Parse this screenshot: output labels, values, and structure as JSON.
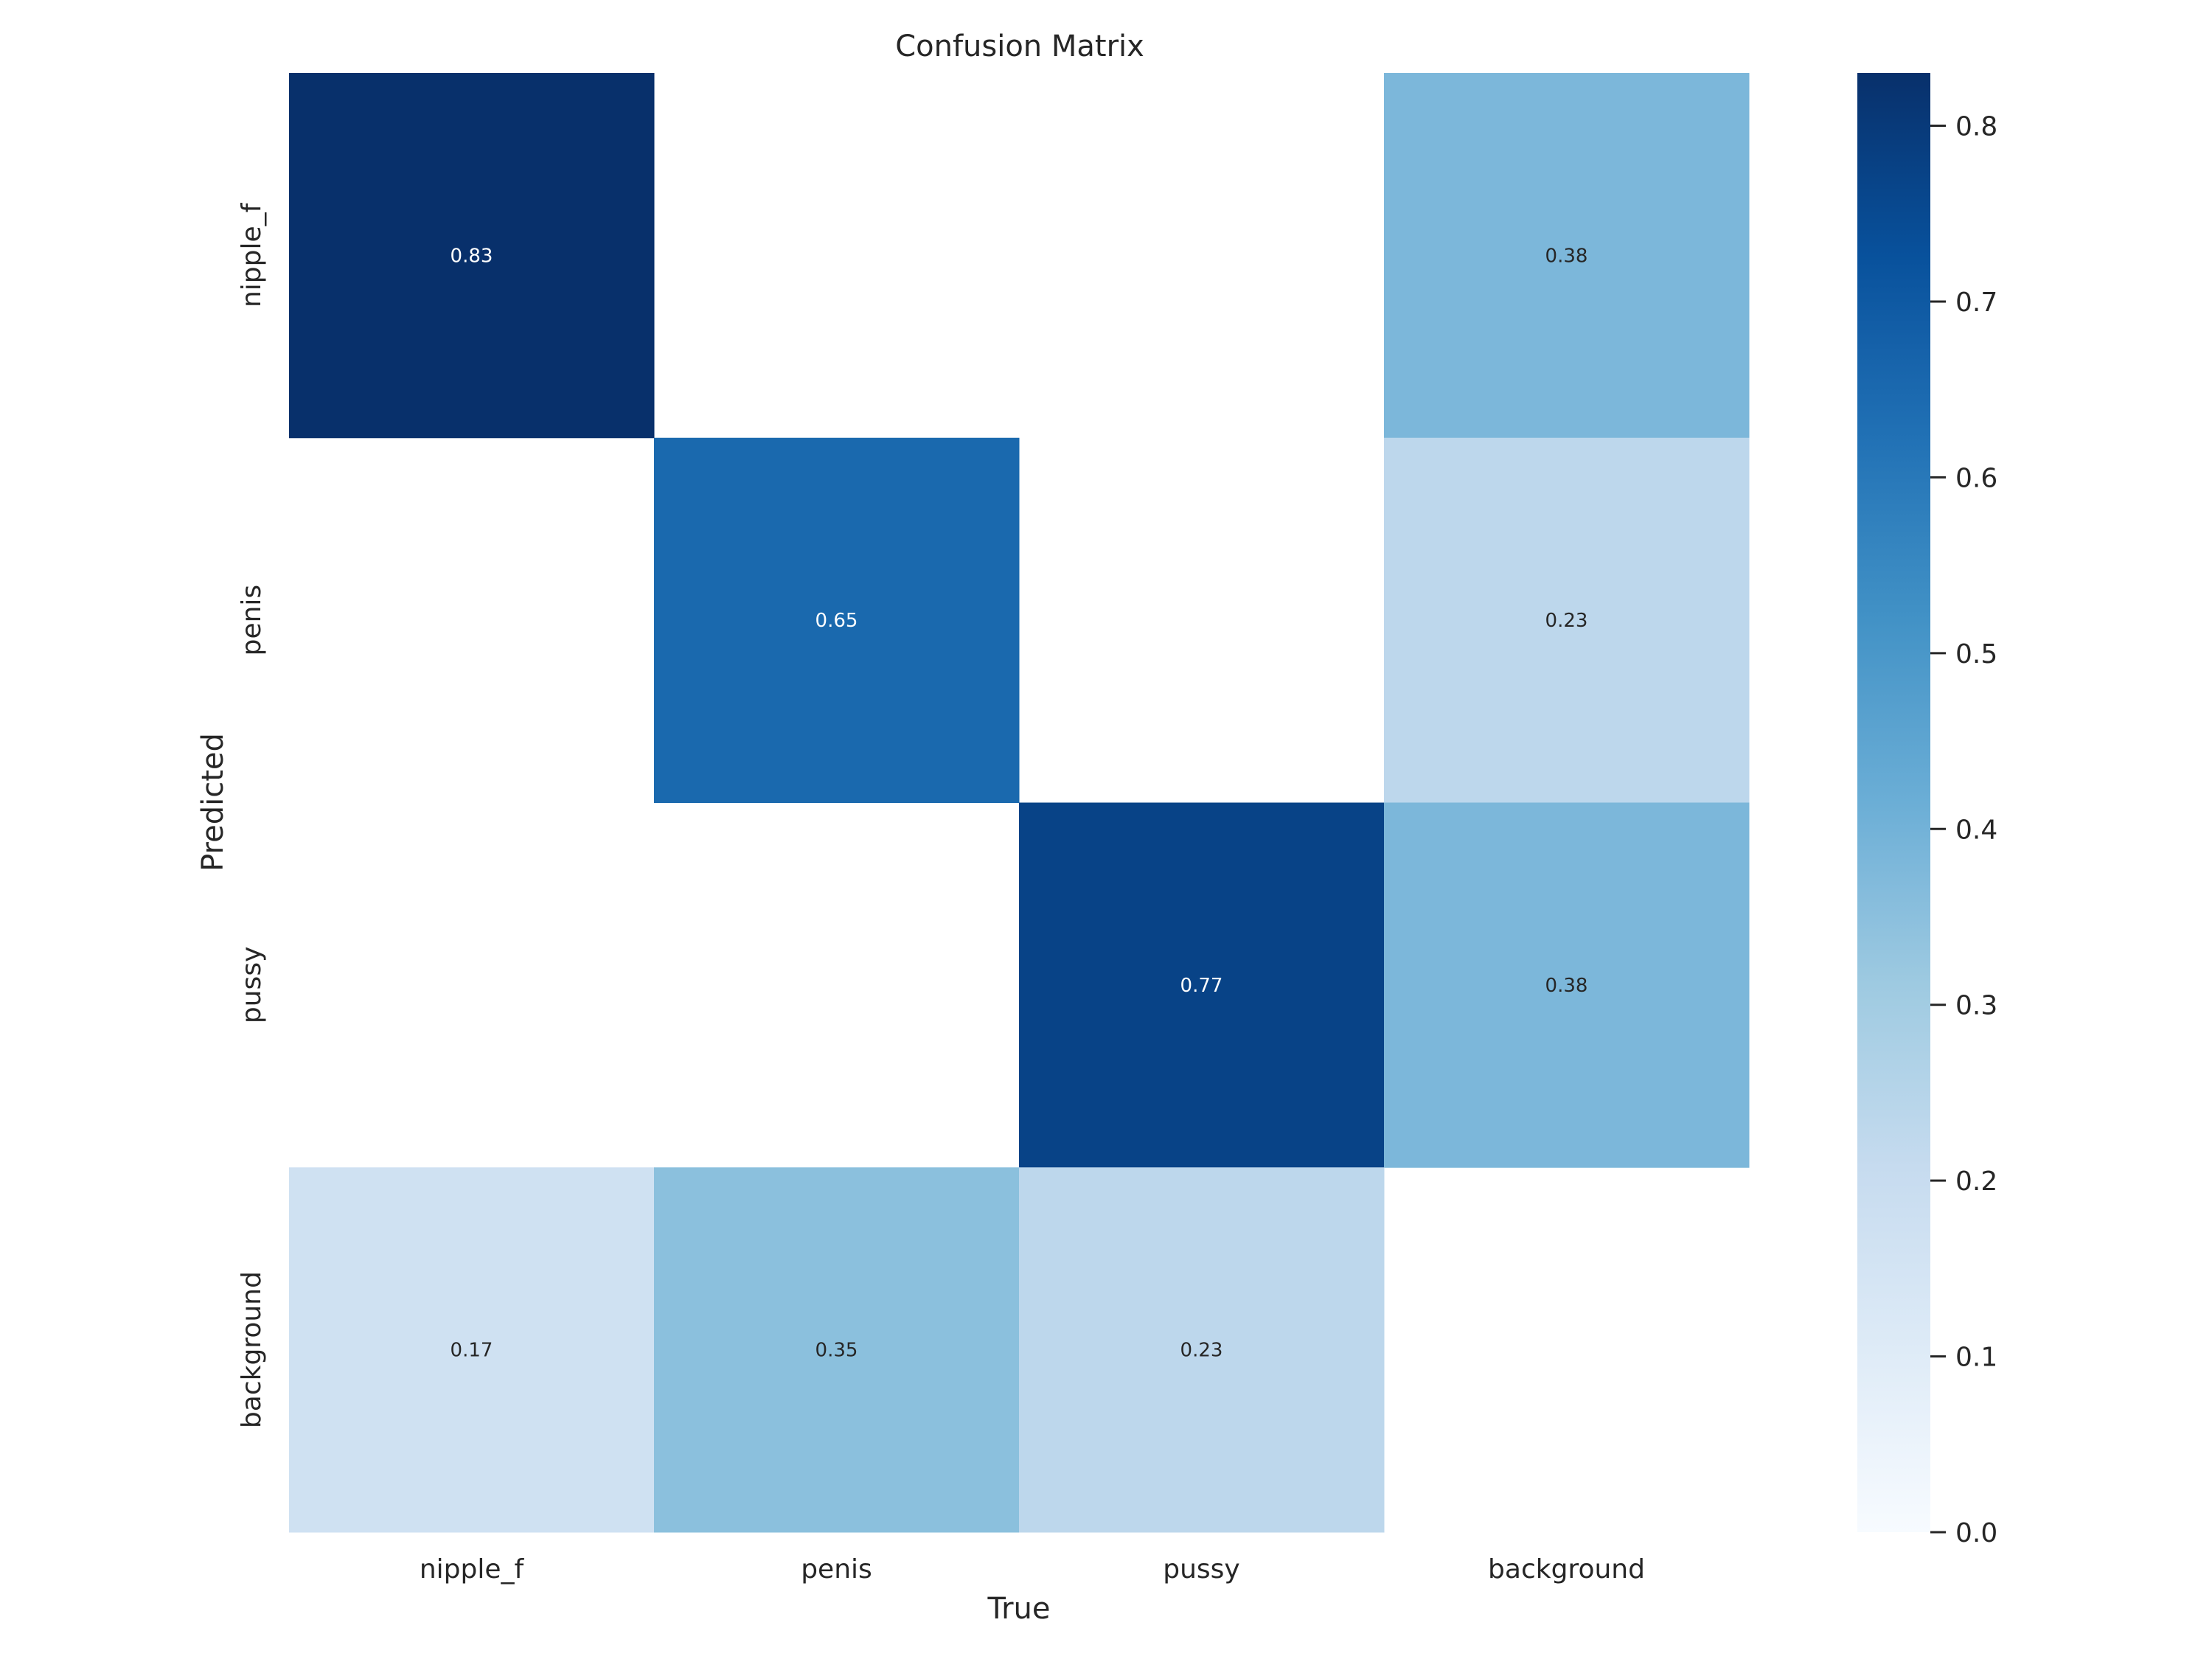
{
  "chart_data": {
    "type": "heatmap",
    "title": "Confusion Matrix",
    "xlabel": "True",
    "ylabel": "Predicted",
    "x_categories": [
      "nipple_f",
      "penis",
      "pussy",
      "background"
    ],
    "y_categories": [
      "nipple_f",
      "penis",
      "pussy",
      "background"
    ],
    "values": [
      [
        0.83,
        null,
        null,
        0.38
      ],
      [
        null,
        0.65,
        null,
        0.23
      ],
      [
        null,
        null,
        0.77,
        0.38
      ],
      [
        0.17,
        0.35,
        0.23,
        null
      ]
    ],
    "colormap": "Blues",
    "colorbar": {
      "range": [
        0,
        0.83
      ],
      "ticks": [
        "0.0",
        "0.1",
        "0.2",
        "0.3",
        "0.4",
        "0.5",
        "0.6",
        "0.7",
        "0.8"
      ]
    },
    "grid": false
  }
}
